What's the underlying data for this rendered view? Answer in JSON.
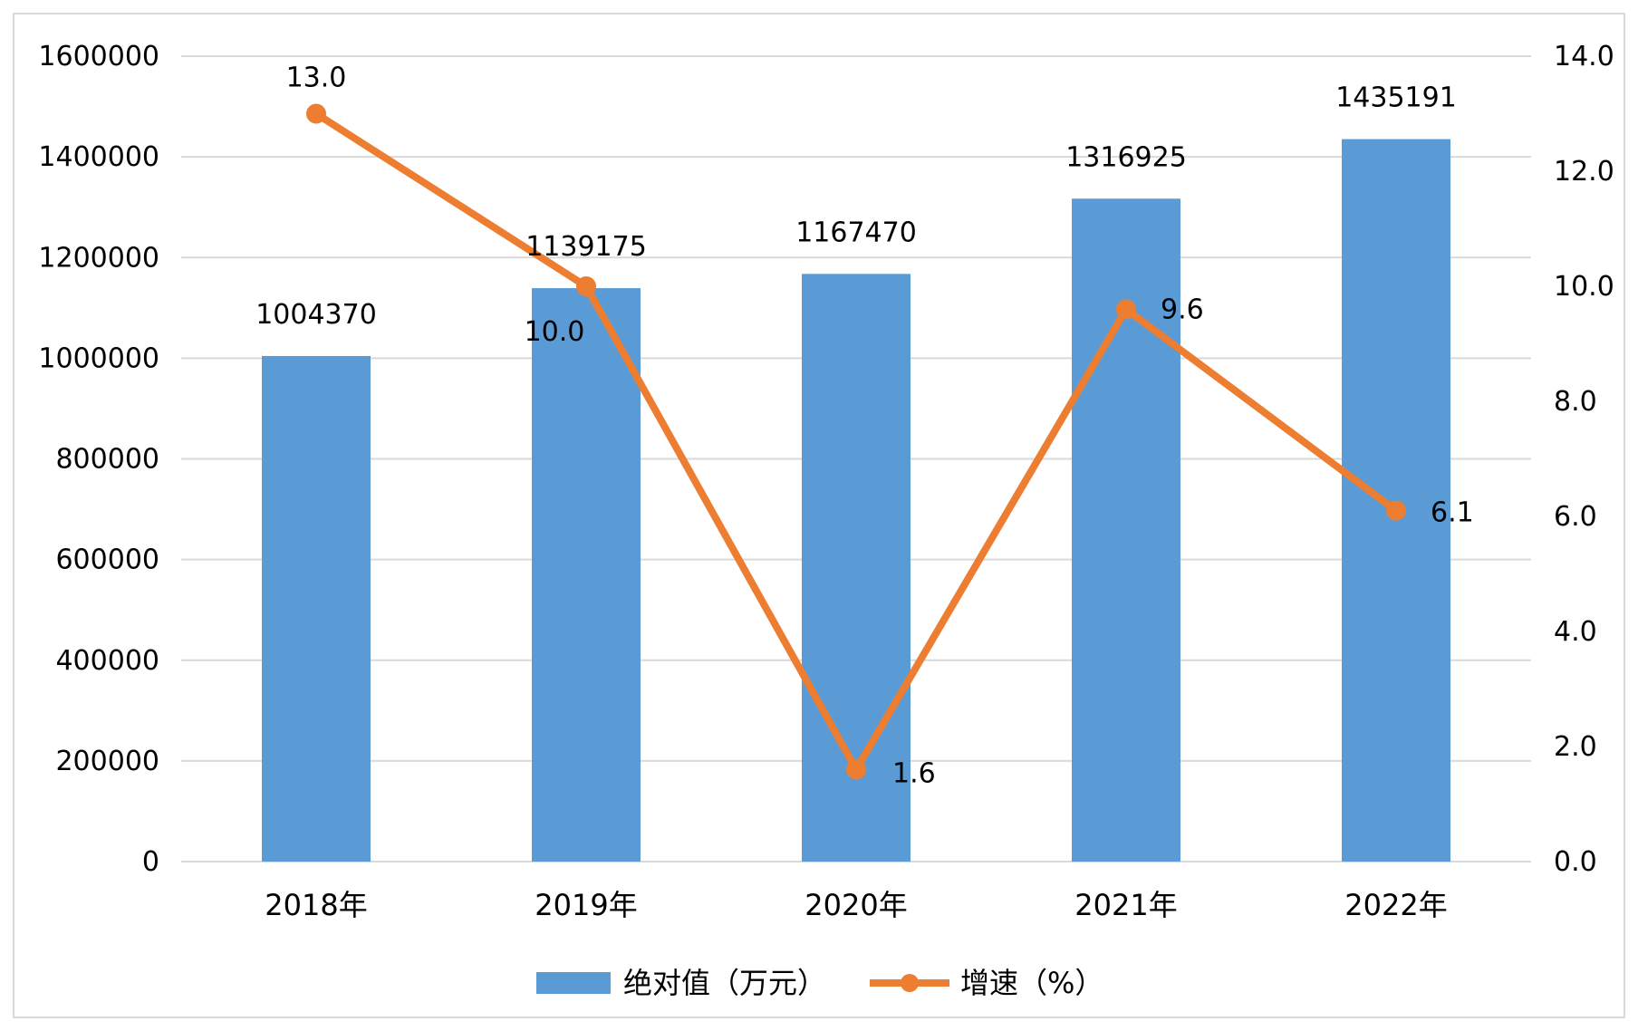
{
  "chart_data": {
    "type": "bar",
    "categories": [
      "2018年",
      "2019年",
      "2020年",
      "2021年",
      "2022年"
    ],
    "series": [
      {
        "name": "绝对值（万元）",
        "type": "bar",
        "axis": "left",
        "color": "#5b9bd5",
        "values": [
          1004370,
          1139175,
          1167470,
          1316925,
          1435191
        ],
        "labels": [
          "1004370",
          "1139175",
          "1167470",
          "1316925",
          "1435191"
        ]
      },
      {
        "name": "增速（%）",
        "type": "line",
        "axis": "right",
        "color": "#ed7d31",
        "values": [
          13.0,
          10.0,
          1.6,
          9.6,
          6.1
        ],
        "labels": [
          "13.0",
          "10.0",
          "1.6",
          "9.6",
          "6.1"
        ]
      }
    ],
    "y_left": {
      "min": 0,
      "max": 1600000,
      "ticks": [
        "0",
        "200000",
        "400000",
        "600000",
        "800000",
        "1000000",
        "1200000",
        "1400000",
        "1600000"
      ]
    },
    "y_right": {
      "min": 0,
      "max": 14,
      "ticks": [
        "0.0",
        "2.0",
        "4.0",
        "6.0",
        "8.0",
        "10.0",
        "12.0",
        "14.0"
      ]
    },
    "grid": true,
    "legend": "bottom-center"
  }
}
